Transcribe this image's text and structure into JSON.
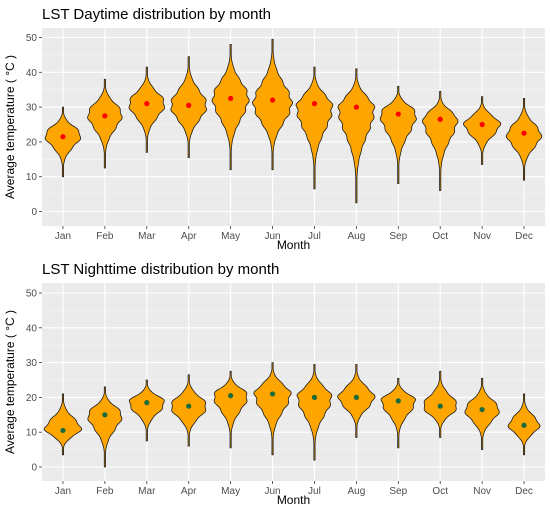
{
  "chart_data": [
    {
      "type": "violin",
      "title": "LST Daytime distribution by month",
      "xlabel": "Month",
      "ylabel": "Average temperature ( °C )",
      "ylim": [
        0,
        50
      ],
      "yticks": [
        0,
        10,
        20,
        30,
        40,
        50
      ],
      "categories": [
        "Jan",
        "Feb",
        "Mar",
        "Apr",
        "May",
        "Jun",
        "Jul",
        "Aug",
        "Sep",
        "Oct",
        "Nov",
        "Dec"
      ],
      "mean": [
        21.5,
        27.5,
        31.0,
        30.5,
        32.5,
        32.0,
        31.0,
        30.0,
        28.0,
        26.5,
        25.0,
        22.5
      ],
      "mode": [
        22.0,
        28.0,
        31.0,
        30.5,
        32.5,
        31.0,
        30.0,
        29.5,
        28.0,
        26.5,
        25.0,
        22.0
      ],
      "min": [
        10.0,
        12.5,
        17.0,
        15.5,
        12.0,
        12.0,
        6.5,
        2.5,
        8.0,
        6.0,
        13.5,
        9.0
      ],
      "max": [
        30.0,
        38.0,
        41.5,
        44.5,
        48.0,
        49.5,
        41.5,
        41.0,
        36.0,
        34.5,
        33.0,
        32.5
      ],
      "max_halfwidth": [
        0.42,
        0.4,
        0.42,
        0.42,
        0.42,
        0.45,
        0.42,
        0.42,
        0.42,
        0.4,
        0.42,
        0.4
      ],
      "violin_color": "#FFA500",
      "mean_color": "#FF0000",
      "grid": true,
      "background": "#EBEBEB"
    },
    {
      "type": "violin",
      "title": "LST Nighttime distribution by month",
      "xlabel": "Month",
      "ylabel": "Average temperature ( °C )",
      "ylim": [
        0,
        50
      ],
      "yticks": [
        0,
        10,
        20,
        30,
        40,
        50
      ],
      "categories": [
        "Jan",
        "Feb",
        "Mar",
        "Apr",
        "May",
        "Jun",
        "Jul",
        "Aug",
        "Sep",
        "Oct",
        "Nov",
        "Dec"
      ],
      "mean": [
        10.5,
        15.0,
        18.5,
        17.5,
        20.5,
        21.0,
        20.0,
        20.0,
        19.0,
        17.5,
        16.5,
        12.0
      ],
      "mode": [
        11.0,
        15.0,
        18.5,
        17.5,
        20.5,
        21.0,
        20.0,
        20.0,
        19.0,
        17.5,
        16.5,
        12.0
      ],
      "min": [
        3.5,
        0.0,
        7.5,
        6.0,
        5.5,
        3.5,
        2.0,
        8.5,
        5.5,
        8.5,
        5.0,
        3.5
      ],
      "max": [
        21.0,
        23.0,
        25.0,
        26.5,
        27.5,
        30.0,
        29.5,
        29.5,
        25.5,
        27.5,
        25.5,
        21.0
      ],
      "max_halfwidth": [
        0.42,
        0.4,
        0.42,
        0.42,
        0.4,
        0.42,
        0.4,
        0.42,
        0.4,
        0.4,
        0.4,
        0.36
      ],
      "violin_color": "#FFA500",
      "mean_color": "#1B6B3A",
      "grid": true,
      "background": "#EBEBEB"
    }
  ]
}
